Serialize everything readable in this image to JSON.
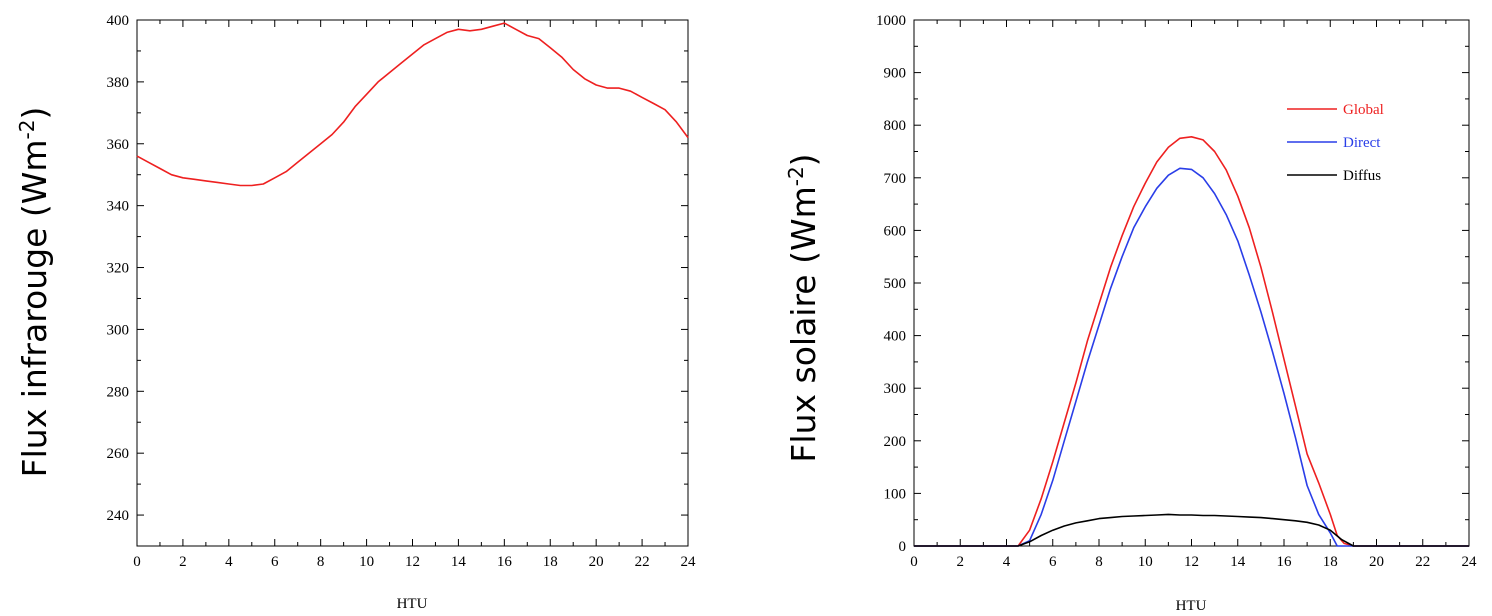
{
  "chart_data": [
    {
      "type": "line",
      "xlabel": "HTU",
      "ylabel_main": "Flux infrarouge (Wm",
      "ylabel_sup": "-2",
      "ylabel_end": ")",
      "xlim": [
        0,
        24
      ],
      "ylim": [
        230,
        400
      ],
      "xticks": [
        "0",
        "2",
        "4",
        "6",
        "8",
        "10",
        "12",
        "14",
        "16",
        "18",
        "20",
        "22",
        "24"
      ],
      "yticks": [
        "240",
        "260",
        "280",
        "300",
        "320",
        "340",
        "360",
        "380",
        "400"
      ],
      "grid": false,
      "colors": {
        "line": "#ee2020"
      },
      "series": [
        {
          "x": [
            0,
            0.5,
            1,
            1.5,
            2,
            2.5,
            3,
            3.5,
            4,
            4.5,
            5,
            5.5,
            6,
            6.5,
            7,
            7.5,
            8,
            8.5,
            9,
            9.5,
            10,
            10.5,
            11,
            11.5,
            12,
            12.5,
            13,
            13.5,
            14,
            14.5,
            15,
            15.5,
            16,
            16.5,
            17,
            17.5,
            18,
            18.5,
            19,
            19.5,
            20,
            20.5,
            21,
            21.5,
            22,
            22.5,
            23,
            23.5,
            24
          ],
          "y": [
            356,
            354,
            352,
            350,
            349,
            348.5,
            348,
            347.5,
            347,
            346.5,
            346.5,
            347,
            349,
            351,
            354,
            357,
            360,
            363,
            367,
            372,
            376,
            380,
            383,
            386,
            389,
            392,
            394,
            396,
            397,
            396.5,
            397,
            398,
            399,
            397,
            395,
            394,
            391,
            388,
            384,
            381,
            379,
            378,
            378,
            377,
            375,
            373,
            371,
            367,
            362
          ]
        }
      ]
    },
    {
      "type": "line",
      "xlabel": "HTU",
      "ylabel_main": "Flux solaire (Wm",
      "ylabel_sup": "-2",
      "ylabel_end": ")",
      "xlim": [
        0,
        24
      ],
      "ylim": [
        0,
        1000
      ],
      "xticks": [
        "0",
        "2",
        "4",
        "6",
        "8",
        "10",
        "12",
        "14",
        "16",
        "18",
        "20",
        "22",
        "24"
      ],
      "yticks": [
        "0",
        "100",
        "200",
        "300",
        "400",
        "500",
        "600",
        "700",
        "800",
        "900",
        "1000"
      ],
      "grid": false,
      "legend_position": "top-right",
      "series": [
        {
          "name": "Global",
          "color": "#ee2020",
          "x": [
            0,
            4.5,
            5,
            5.5,
            6,
            6.5,
            7,
            7.5,
            8,
            8.5,
            9,
            9.5,
            10,
            10.5,
            11,
            11.5,
            12,
            12.5,
            13,
            13.5,
            14,
            14.5,
            15,
            15.5,
            16,
            16.5,
            17,
            17.5,
            18,
            18.3,
            18.6,
            19,
            24
          ],
          "y": [
            0,
            0,
            30,
            90,
            160,
            235,
            310,
            390,
            460,
            530,
            590,
            645,
            690,
            730,
            758,
            775,
            778,
            772,
            750,
            715,
            665,
            605,
            530,
            445,
            355,
            265,
            175,
            120,
            60,
            20,
            5,
            0,
            0
          ]
        },
        {
          "name": "Direct",
          "color": "#2a3ee8",
          "x": [
            0,
            4.5,
            5,
            5.5,
            6,
            6.5,
            7,
            7.5,
            8,
            8.5,
            9,
            9.5,
            10,
            10.5,
            11,
            11.5,
            12,
            12.5,
            13,
            13.5,
            14,
            14.5,
            15,
            15.5,
            16,
            16.5,
            17,
            17.5,
            18,
            18.3,
            24
          ],
          "y": [
            0,
            0,
            10,
            60,
            125,
            200,
            275,
            350,
            420,
            490,
            550,
            605,
            645,
            680,
            705,
            718,
            716,
            700,
            670,
            630,
            580,
            515,
            445,
            370,
            290,
            205,
            115,
            60,
            25,
            0,
            0
          ]
        },
        {
          "name": "Diffus",
          "color": "#000000",
          "x": [
            0,
            4.5,
            5,
            5.5,
            6,
            6.5,
            7,
            7.5,
            8,
            8.5,
            9,
            9.5,
            10,
            10.5,
            11,
            11.5,
            12,
            12.5,
            13,
            13.5,
            14,
            14.5,
            15,
            15.5,
            16,
            16.5,
            17,
            17.5,
            18,
            18.5,
            19,
            24
          ],
          "y": [
            0,
            0,
            8,
            20,
            30,
            38,
            44,
            48,
            52,
            54,
            56,
            57,
            58,
            59,
            60,
            59,
            59,
            58,
            58,
            57,
            56,
            55,
            54,
            52,
            50,
            48,
            45,
            40,
            30,
            12,
            0,
            0
          ]
        }
      ]
    }
  ]
}
